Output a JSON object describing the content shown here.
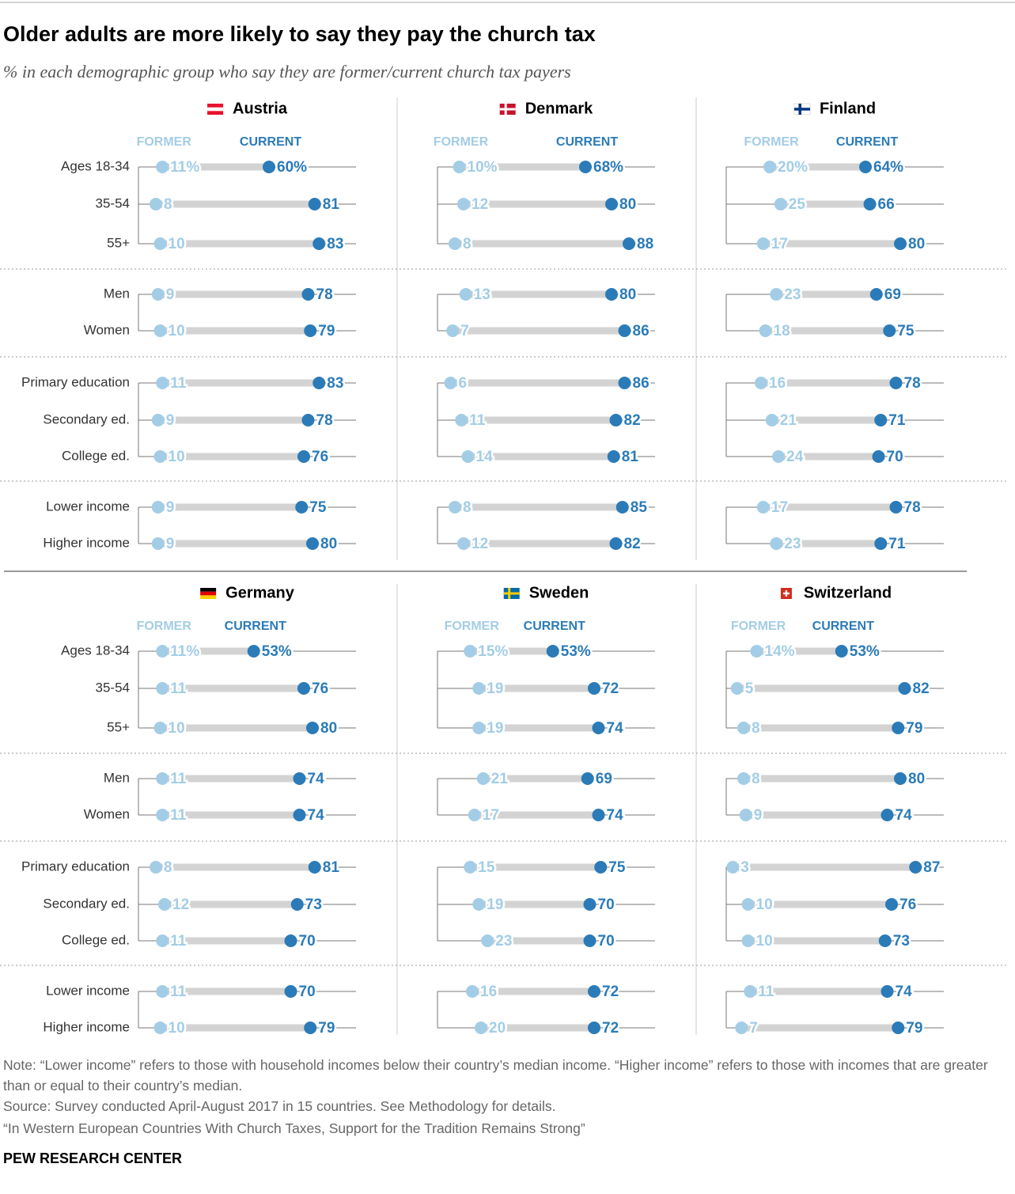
{
  "title": "Older adults are more likely to say they pay the church tax",
  "subtitle": "% in each demographic group who say they are former/current church tax payers",
  "note": "Note: “Lower income” refers to those with household incomes below their country’s median income. “Higher income” refers to those with incomes that are greater than or equal to their country’s median.",
  "source": "Source: Survey conducted April-August 2017 in 15 countries. See Methodology for details.",
  "report": "“In Western European Countries With Church Taxes, Support for the Tradition Remains Strong”",
  "credit": "PEW RESEARCH CENTER",
  "chart_data": [
    {
      "type": "dumbbell",
      "title": "Austria",
      "xlim": [
        0,
        100
      ],
      "categories": [
        "Ages 18-34",
        "35-54",
        "55+",
        "Men",
        "Women",
        "Primary education",
        "Secondary ed.",
        "College ed.",
        "Lower income",
        "Higher income"
      ],
      "series": [
        {
          "name": "FORMER",
          "color": "#a3cde6",
          "values": [
            11,
            8,
            10,
            9,
            10,
            11,
            9,
            10,
            9,
            9
          ],
          "value_labels": [
            "11%",
            "8",
            "10",
            "9",
            "10",
            "11",
            "9",
            "10",
            "9",
            "9"
          ]
        },
        {
          "name": "CURRENT",
          "color": "#2b7bb8",
          "values": [
            60,
            81,
            83,
            78,
            79,
            83,
            78,
            76,
            75,
            80
          ],
          "value_labels": [
            "60%",
            "81",
            "83",
            "78",
            "79",
            "83",
            "78",
            "76",
            "75",
            "80"
          ]
        }
      ]
    },
    {
      "type": "dumbbell",
      "title": "Denmark",
      "xlim": [
        0,
        100
      ],
      "categories": [
        null,
        null,
        null,
        null,
        null,
        null,
        null,
        null,
        null,
        null
      ],
      "series": [
        {
          "name": "FORMER",
          "color": "#a3cde6",
          "values": [
            10,
            12,
            8,
            13,
            7,
            6,
            11,
            14,
            8,
            12
          ],
          "value_labels": [
            "10%",
            "12",
            "8",
            "13",
            "7",
            "6",
            "11",
            "14",
            "8",
            "12"
          ]
        },
        {
          "name": "CURRENT",
          "color": "#2b7bb8",
          "values": [
            68,
            80,
            88,
            80,
            86,
            86,
            82,
            81,
            85,
            82
          ],
          "value_labels": [
            "68%",
            "80",
            "88",
            "80",
            "86",
            "86",
            "82",
            "81",
            "85",
            "82"
          ]
        }
      ]
    },
    {
      "type": "dumbbell",
      "title": "Finland",
      "xlim": [
        0,
        100
      ],
      "categories": [
        null,
        null,
        null,
        null,
        null,
        null,
        null,
        null,
        null,
        null
      ],
      "series": [
        {
          "name": "FORMER",
          "color": "#a3cde6",
          "values": [
            20,
            25,
            17,
            23,
            18,
            16,
            21,
            24,
            17,
            23
          ],
          "value_labels": [
            "20%",
            "25",
            "17",
            "23",
            "18",
            "16",
            "21",
            "24",
            "17",
            "23"
          ]
        },
        {
          "name": "CURRENT",
          "color": "#2b7bb8",
          "values": [
            64,
            66,
            80,
            69,
            75,
            78,
            71,
            70,
            78,
            71
          ],
          "value_labels": [
            "64%",
            "66",
            "80",
            "69",
            "75",
            "78",
            "71",
            "70",
            "78",
            "71"
          ]
        }
      ]
    },
    {
      "type": "dumbbell",
      "title": "Germany",
      "xlim": [
        0,
        100
      ],
      "categories": [
        "Ages 18-34",
        "35-54",
        "55+",
        "Men",
        "Women",
        "Primary education",
        "Secondary ed.",
        "College ed.",
        "Lower income",
        "Higher income"
      ],
      "series": [
        {
          "name": "FORMER",
          "color": "#a3cde6",
          "values": [
            11,
            11,
            10,
            11,
            11,
            8,
            12,
            11,
            11,
            10
          ],
          "value_labels": [
            "11%",
            "11",
            "10",
            "11",
            "11",
            "8",
            "12",
            "11",
            "11",
            "10"
          ]
        },
        {
          "name": "CURRENT",
          "color": "#2b7bb8",
          "values": [
            53,
            76,
            80,
            74,
            74,
            81,
            73,
            70,
            70,
            79
          ],
          "value_labels": [
            "53%",
            "76",
            "80",
            "74",
            "74",
            "81",
            "73",
            "70",
            "70",
            "79"
          ]
        }
      ]
    },
    {
      "type": "dumbbell",
      "title": "Sweden",
      "xlim": [
        0,
        100
      ],
      "categories": [
        null,
        null,
        null,
        null,
        null,
        null,
        null,
        null,
        null,
        null
      ],
      "series": [
        {
          "name": "FORMER",
          "color": "#a3cde6",
          "values": [
            15,
            19,
            19,
            21,
            17,
            15,
            19,
            23,
            16,
            20
          ],
          "value_labels": [
            "15%",
            "19",
            "19",
            "21",
            "17",
            "15",
            "19",
            "23",
            "16",
            "20"
          ]
        },
        {
          "name": "CURRENT",
          "color": "#2b7bb8",
          "values": [
            53,
            72,
            74,
            69,
            74,
            75,
            70,
            70,
            72,
            72
          ],
          "value_labels": [
            "53%",
            "72",
            "74",
            "69",
            "74",
            "75",
            "70",
            "70",
            "72",
            "72"
          ]
        }
      ]
    },
    {
      "type": "dumbbell",
      "title": "Switzerland",
      "xlim": [
        0,
        100
      ],
      "categories": [
        null,
        null,
        null,
        null,
        null,
        null,
        null,
        null,
        null,
        null
      ],
      "series": [
        {
          "name": "FORMER",
          "color": "#a3cde6",
          "values": [
            14,
            5,
            8,
            8,
            9,
            3,
            10,
            10,
            11,
            7
          ],
          "value_labels": [
            "14%",
            "5",
            "8",
            "8",
            "9",
            "3",
            "10",
            "10",
            "11",
            "7"
          ]
        },
        {
          "name": "CURRENT",
          "color": "#2b7bb8",
          "values": [
            53,
            82,
            79,
            80,
            74,
            87,
            76,
            73,
            74,
            79
          ],
          "value_labels": [
            "53%",
            "82",
            "79",
            "80",
            "74",
            "87",
            "76",
            "73",
            "74",
            "79"
          ]
        }
      ]
    }
  ]
}
